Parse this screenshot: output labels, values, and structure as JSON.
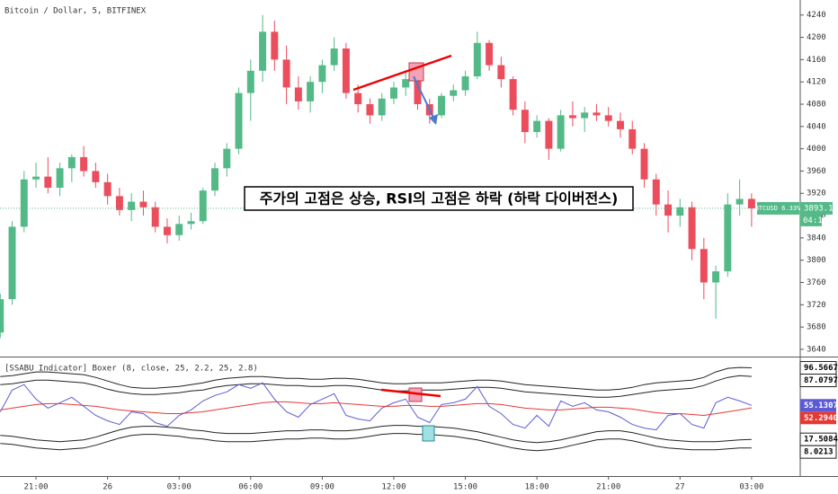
{
  "chart_data": [
    {
      "type": "candlestick",
      "title": "Bitcoin / Dollar, 5, BITFINEX",
      "annotation": "주가의 고점은 상승, RSI의 고점은 하락 (하락 다이버전스)",
      "change_label": "BTCUSD 6.33%",
      "countdown": "04:11",
      "up_color": "#53b987",
      "down_color": "#eb4d5c",
      "xlim": [
        19.49,
        53.04
      ],
      "ylim": [
        3627,
        4267
      ],
      "xticks": [
        {
          "value": 21,
          "label": "21:00"
        },
        {
          "value": 24,
          "label": "26"
        },
        {
          "value": 27,
          "label": "03:00"
        },
        {
          "value": 30,
          "label": "06:00"
        },
        {
          "value": 33,
          "label": "09:00"
        },
        {
          "value": 36,
          "label": "12:00"
        },
        {
          "value": 39,
          "label": "15:00"
        },
        {
          "value": 42,
          "label": "18:00"
        },
        {
          "value": 45,
          "label": "21:00"
        },
        {
          "value": 48,
          "label": "27"
        },
        {
          "value": 51,
          "label": "03:00"
        }
      ],
      "yticks": [
        3640,
        3680,
        3720,
        3760,
        3800,
        3840,
        3880,
        3920,
        3960,
        4000,
        4040,
        4080,
        4120,
        4160,
        4200,
        4240
      ],
      "x": [
        19.5,
        20,
        20.5,
        21,
        21.5,
        22,
        22.5,
        23,
        23.5,
        24,
        24.5,
        25,
        25.5,
        26,
        26.5,
        27,
        27.5,
        28,
        28.5,
        29,
        29.5,
        30,
        30.5,
        31,
        31.5,
        32,
        32.5,
        33,
        33.5,
        34,
        34.5,
        35,
        35.5,
        36,
        36.5,
        37,
        37.5,
        38,
        38.5,
        39,
        39.5,
        40,
        40.5,
        41,
        41.5,
        42,
        42.5,
        43,
        43.5,
        44,
        44.5,
        45,
        45.5,
        46,
        46.5,
        47,
        47.5,
        48,
        48.5,
        49,
        49.5,
        50,
        50.5,
        51
      ],
      "ohlc": [
        [
          3670,
          3740,
          3660,
          3730
        ],
        [
          3730,
          3870,
          3720,
          3860
        ],
        [
          3860,
          3960,
          3850,
          3945
        ],
        [
          3945,
          3975,
          3930,
          3950
        ],
        [
          3950,
          3985,
          3920,
          3930
        ],
        [
          3930,
          3975,
          3915,
          3965
        ],
        [
          3965,
          3990,
          3940,
          3985
        ],
        [
          3985,
          4005,
          3950,
          3960
        ],
        [
          3960,
          3975,
          3930,
          3940
        ],
        [
          3940,
          3955,
          3900,
          3915
        ],
        [
          3915,
          3930,
          3880,
          3890
        ],
        [
          3890,
          3920,
          3870,
          3905
        ],
        [
          3905,
          3925,
          3880,
          3895
        ],
        [
          3895,
          3905,
          3850,
          3860
        ],
        [
          3860,
          3875,
          3830,
          3845
        ],
        [
          3845,
          3880,
          3835,
          3865
        ],
        [
          3865,
          3885,
          3855,
          3870
        ],
        [
          3870,
          3930,
          3865,
          3925
        ],
        [
          3925,
          3975,
          3915,
          3965
        ],
        [
          3965,
          4010,
          3950,
          4000
        ],
        [
          4000,
          4110,
          3990,
          4100
        ],
        [
          4100,
          4160,
          4050,
          4140
        ],
        [
          4140,
          4240,
          4120,
          4210
        ],
        [
          4210,
          4230,
          4140,
          4160
        ],
        [
          4160,
          4185,
          4080,
          4110
        ],
        [
          4110,
          4130,
          4070,
          4085
        ],
        [
          4085,
          4130,
          4065,
          4120
        ],
        [
          4120,
          4160,
          4100,
          4150
        ],
        [
          4150,
          4200,
          4140,
          4180
        ],
        [
          4180,
          4190,
          4090,
          4100
        ],
        [
          4100,
          4115,
          4065,
          4080
        ],
        [
          4080,
          4090,
          4045,
          4060
        ],
        [
          4060,
          4100,
          4050,
          4090
        ],
        [
          4090,
          4120,
          4080,
          4110
        ],
        [
          4110,
          4140,
          4095,
          4125
        ],
        [
          4125,
          4135,
          4070,
          4080
        ],
        [
          4080,
          4090,
          4045,
          4060
        ],
        [
          4060,
          4100,
          4055,
          4095
        ],
        [
          4095,
          4115,
          4085,
          4105
        ],
        [
          4105,
          4140,
          4095,
          4130
        ],
        [
          4130,
          4210,
          4125,
          4190
        ],
        [
          4190,
          4195,
          4140,
          4150
        ],
        [
          4150,
          4165,
          4110,
          4125
        ],
        [
          4125,
          4130,
          4060,
          4070
        ],
        [
          4070,
          4085,
          4010,
          4030
        ],
        [
          4030,
          4060,
          4020,
          4050
        ],
        [
          4050,
          4055,
          3980,
          4000
        ],
        [
          4000,
          4070,
          3995,
          4060
        ],
        [
          4060,
          4085,
          4040,
          4055
        ],
        [
          4055,
          4075,
          4030,
          4065
        ],
        [
          4065,
          4080,
          4050,
          4060
        ],
        [
          4060,
          4075,
          4040,
          4050
        ],
        [
          4050,
          4065,
          4020,
          4035
        ],
        [
          4035,
          4050,
          3990,
          4000
        ],
        [
          4000,
          4010,
          3930,
          3945
        ],
        [
          3945,
          3955,
          3880,
          3900
        ],
        [
          3900,
          3925,
          3850,
          3880
        ],
        [
          3880,
          3910,
          3860,
          3895
        ],
        [
          3895,
          3905,
          3800,
          3820
        ],
        [
          3820,
          3840,
          3730,
          3760
        ],
        [
          3760,
          3790,
          3695,
          3780
        ],
        [
          3780,
          3920,
          3770,
          3900
        ],
        [
          3900,
          3945,
          3880,
          3910
        ],
        [
          3910,
          3920,
          3860,
          3893.1
        ]
      ]
    },
    {
      "type": "line",
      "title": "[SSABU Indicator] Boxer (8, close, 25, 2.2, 25, 2.8)",
      "ylim": [
        -23,
        108
      ],
      "series": [
        {
          "color": "#222222",
          "last_label": "96.5667",
          "values": [
            87,
            88,
            90,
            92,
            92,
            91,
            90,
            89,
            86,
            82,
            78,
            75,
            74,
            74,
            75,
            76,
            78,
            80,
            83,
            85,
            86,
            87,
            87,
            86,
            85,
            85,
            84,
            84,
            85,
            85,
            84,
            82,
            80,
            79,
            79,
            80,
            80,
            80,
            81,
            82,
            83,
            83,
            82,
            80,
            78,
            77,
            76,
            75,
            74,
            73,
            72,
            72,
            73,
            75,
            78,
            80,
            81,
            82,
            83,
            86,
            92,
            96,
            97,
            96.5667
          ]
        },
        {
          "color": "#222222",
          "last_label": "87.0797",
          "values": [
            78,
            79,
            81,
            83,
            83,
            82,
            81,
            80,
            77,
            73,
            70,
            68,
            67,
            67,
            68,
            69,
            71,
            72,
            75,
            77,
            78,
            79,
            79,
            78,
            77,
            77,
            76,
            76,
            77,
            77,
            76,
            74,
            72,
            71,
            71,
            72,
            72,
            72,
            73,
            74,
            75,
            75,
            74,
            72,
            70,
            69,
            68,
            67,
            66,
            65,
            64,
            64,
            65,
            67,
            69,
            71,
            72,
            73,
            74,
            77,
            82,
            86,
            88,
            87.0797
          ]
        },
        {
          "color": "#5b5bd6",
          "last_label": "55.1307",
          "values": [
            48,
            72,
            78,
            62,
            52,
            58,
            64,
            54,
            44,
            38,
            34,
            48,
            46,
            36,
            32,
            44,
            50,
            60,
            66,
            70,
            78,
            74,
            80,
            62,
            48,
            42,
            56,
            62,
            68,
            44,
            40,
            38,
            52,
            58,
            62,
            42,
            36,
            56,
            58,
            62,
            76,
            54,
            46,
            34,
            30,
            44,
            32,
            60,
            54,
            58,
            50,
            48,
            42,
            34,
            30,
            28,
            44,
            46,
            34,
            30,
            58,
            64,
            60,
            55.1307
          ]
        },
        {
          "color": "#e53935",
          "last_label": "52.2940",
          "values": [
            50,
            52,
            54,
            56,
            57,
            57,
            56,
            55,
            54,
            52,
            50,
            49,
            48,
            47,
            46,
            46,
            47,
            48,
            50,
            52,
            54,
            56,
            58,
            59,
            59,
            58,
            57,
            57,
            58,
            57,
            56,
            55,
            54,
            54,
            55,
            55,
            54,
            54,
            55,
            56,
            57,
            57,
            56,
            54,
            52,
            51,
            50,
            50,
            51,
            52,
            53,
            53,
            52,
            51,
            49,
            47,
            46,
            46,
            45,
            44,
            46,
            48,
            50,
            52.294
          ]
        },
        {
          "color": "#222222",
          "last_label": "17.5084",
          "values": [
            22,
            21,
            19,
            17,
            16,
            15,
            16,
            17,
            20,
            24,
            28,
            31,
            32,
            32,
            31,
            30,
            28,
            27,
            25,
            24,
            24,
            24,
            25,
            26,
            27,
            27,
            28,
            28,
            27,
            27,
            28,
            30,
            32,
            33,
            33,
            32,
            32,
            31,
            30,
            28,
            26,
            23,
            20,
            17,
            15,
            14,
            15,
            17,
            20,
            23,
            26,
            27,
            27,
            25,
            22,
            19,
            17,
            16,
            15,
            15,
            15,
            16,
            17,
            17.5084
          ]
        },
        {
          "color": "#222222",
          "last_label": "8.0213",
          "values": [
            13,
            12,
            10,
            8,
            7,
            6,
            7,
            8,
            11,
            15,
            19,
            22,
            23,
            23,
            22,
            21,
            19,
            18,
            16,
            15,
            15,
            15,
            16,
            17,
            18,
            18,
            19,
            19,
            18,
            18,
            19,
            21,
            23,
            24,
            24,
            23,
            23,
            22,
            21,
            19,
            17,
            14,
            11,
            8,
            6,
            5,
            6,
            8,
            11,
            14,
            17,
            18,
            18,
            16,
            13,
            10,
            8,
            7,
            6,
            6,
            6,
            7,
            8,
            8.0213
          ]
        }
      ]
    }
  ]
}
